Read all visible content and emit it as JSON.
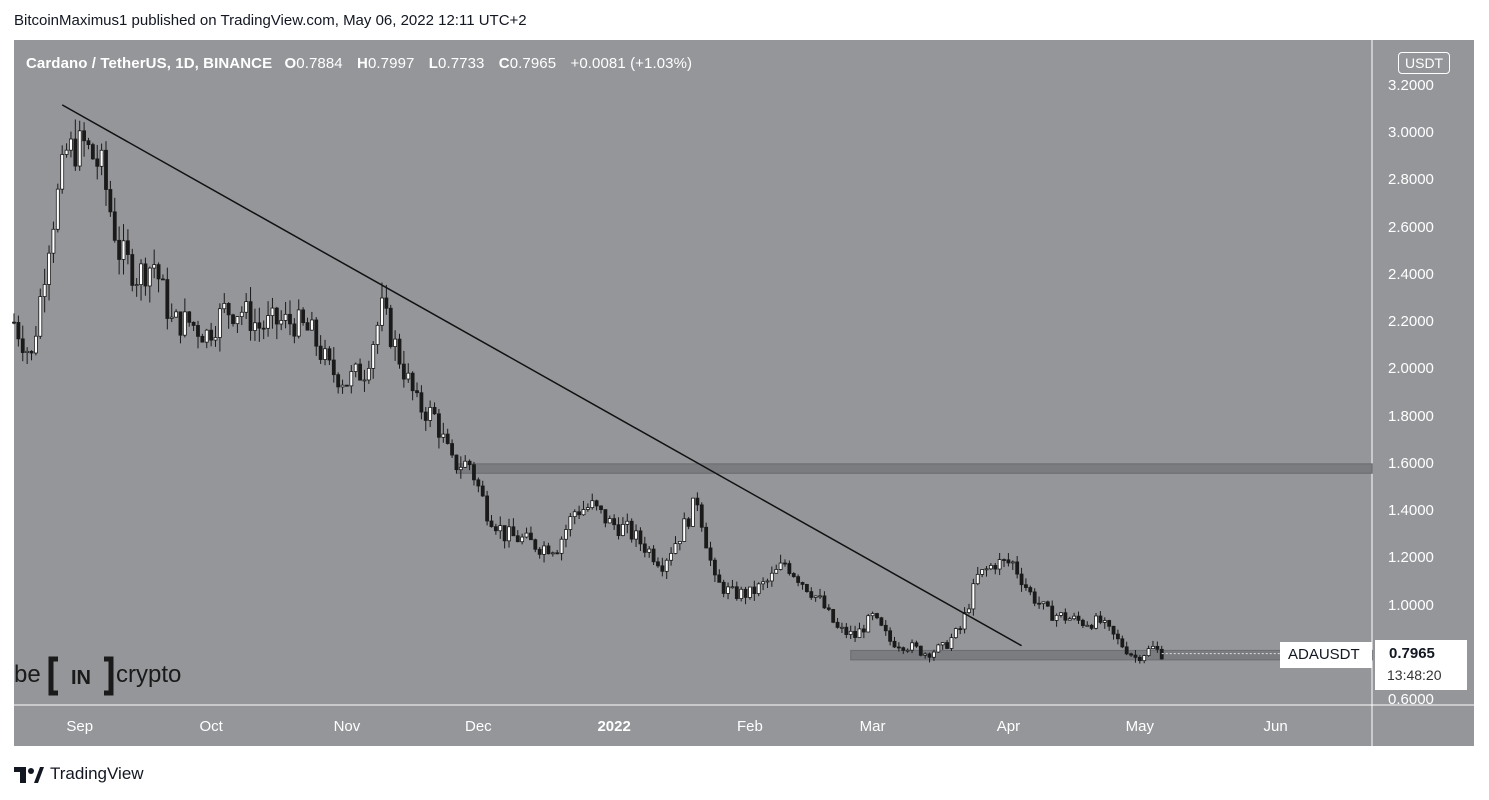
{
  "header": {
    "published_line": "BitcoinMaximus1 published on TradingView.com, May 06, 2022 12:11 UTC+2"
  },
  "legend": {
    "symbol": "Cardano / TetherUS, 1D, BINANCE",
    "o_key": "O",
    "o_val": "0.7884",
    "h_key": "H",
    "h_val": "0.7997",
    "l_key": "L",
    "l_val": "0.7733",
    "c_key": "C",
    "c_val": "0.7965",
    "change": "+0.0081 (+1.03%)"
  },
  "currency_tag": "USDT",
  "price_label": {
    "ticker": "ADAUSDT",
    "price": "0.7965",
    "countdown": "13:48:20"
  },
  "logo": {
    "left": "be",
    "middle": "IN",
    "right": "crypto"
  },
  "footer": {
    "brand": "TradingView"
  },
  "colors": {
    "background": "#949699",
    "candle": "#1a1a1a",
    "zone": "#7a7c80",
    "text": "#ffffff"
  },
  "chart_data": {
    "type": "candlestick",
    "title": "Cardano / TetherUS, 1D, BINANCE",
    "ylim": [
      0.6,
      3.3
    ],
    "y_ticks": [
      "3.2000",
      "3.0000",
      "2.8000",
      "2.6000",
      "2.4000",
      "2.2000",
      "2.0000",
      "1.8000",
      "1.6000",
      "1.4000",
      "1.2000",
      "1.0000",
      "0.6000"
    ],
    "x_ticks": [
      {
        "label": "Sep",
        "date": "2021-09-01"
      },
      {
        "label": "Oct",
        "date": "2021-10-01"
      },
      {
        "label": "Nov",
        "date": "2021-11-01"
      },
      {
        "label": "Dec",
        "date": "2021-12-01"
      },
      {
        "label": "2022",
        "date": "2022-01-01"
      },
      {
        "label": "Feb",
        "date": "2022-02-01"
      },
      {
        "label": "Mar",
        "date": "2022-03-01"
      },
      {
        "label": "Apr",
        "date": "2022-04-01"
      },
      {
        "label": "May",
        "date": "2022-05-01"
      },
      {
        "label": "Jun",
        "date": "2022-06-01"
      }
    ],
    "xlim": [
      "2021-08-17",
      "2022-06-23"
    ],
    "trendline": [
      {
        "date": "2021-08-28",
        "price": 3.12
      },
      {
        "date": "2022-04-04",
        "price": 0.83
      }
    ],
    "zones": [
      {
        "from": "2021-11-26",
        "price_low": 1.56,
        "price_high": 1.6
      },
      {
        "from": "2022-02-24",
        "price_low": 0.77,
        "price_high": 0.81
      }
    ],
    "closes": [
      {
        "date": "2021-08-17",
        "price": 2.2
      },
      {
        "date": "2021-08-21",
        "price": 2.05
      },
      {
        "date": "2021-08-25",
        "price": 2.55
      },
      {
        "date": "2021-08-29",
        "price": 2.92
      },
      {
        "date": "2021-09-02",
        "price": 2.95
      },
      {
        "date": "2021-09-06",
        "price": 2.85
      },
      {
        "date": "2021-09-10",
        "price": 2.5
      },
      {
        "date": "2021-09-14",
        "price": 2.4
      },
      {
        "date": "2021-09-18",
        "price": 2.45
      },
      {
        "date": "2021-09-22",
        "price": 2.2
      },
      {
        "date": "2021-09-26",
        "price": 2.2
      },
      {
        "date": "2021-09-30",
        "price": 2.15
      },
      {
        "date": "2021-10-04",
        "price": 2.25
      },
      {
        "date": "2021-10-08",
        "price": 2.25
      },
      {
        "date": "2021-10-12",
        "price": 2.18
      },
      {
        "date": "2021-10-16",
        "price": 2.2
      },
      {
        "date": "2021-10-20",
        "price": 2.2
      },
      {
        "date": "2021-10-24",
        "price": 2.15
      },
      {
        "date": "2021-10-28",
        "price": 2.0
      },
      {
        "date": "2021-11-01",
        "price": 1.95
      },
      {
        "date": "2021-11-05",
        "price": 2.0
      },
      {
        "date": "2021-11-09",
        "price": 2.25
      },
      {
        "date": "2021-11-13",
        "price": 2.05
      },
      {
        "date": "2021-11-17",
        "price": 1.85
      },
      {
        "date": "2021-11-21",
        "price": 1.8
      },
      {
        "date": "2021-11-25",
        "price": 1.6
      },
      {
        "date": "2021-11-29",
        "price": 1.6
      },
      {
        "date": "2021-12-03",
        "price": 1.4
      },
      {
        "date": "2021-12-07",
        "price": 1.3
      },
      {
        "date": "2021-12-11",
        "price": 1.28
      },
      {
        "date": "2021-12-15",
        "price": 1.25
      },
      {
        "date": "2021-12-19",
        "price": 1.25
      },
      {
        "date": "2021-12-23",
        "price": 1.4
      },
      {
        "date": "2021-12-27",
        "price": 1.42
      },
      {
        "date": "2021-12-31",
        "price": 1.35
      },
      {
        "date": "2022-01-04",
        "price": 1.32
      },
      {
        "date": "2022-01-08",
        "price": 1.25
      },
      {
        "date": "2022-01-12",
        "price": 1.18
      },
      {
        "date": "2022-01-16",
        "price": 1.3
      },
      {
        "date": "2022-01-20",
        "price": 1.45
      },
      {
        "date": "2022-01-24",
        "price": 1.1
      },
      {
        "date": "2022-01-28",
        "price": 1.05
      },
      {
        "date": "2022-02-01",
        "price": 1.05
      },
      {
        "date": "2022-02-05",
        "price": 1.1
      },
      {
        "date": "2022-02-09",
        "price": 1.18
      },
      {
        "date": "2022-02-13",
        "price": 1.1
      },
      {
        "date": "2022-02-17",
        "price": 1.02
      },
      {
        "date": "2022-02-21",
        "price": 0.9
      },
      {
        "date": "2022-02-25",
        "price": 0.87
      },
      {
        "date": "2022-03-01",
        "price": 0.95
      },
      {
        "date": "2022-03-05",
        "price": 0.85
      },
      {
        "date": "2022-03-09",
        "price": 0.83
      },
      {
        "date": "2022-03-13",
        "price": 0.8
      },
      {
        "date": "2022-03-17",
        "price": 0.82
      },
      {
        "date": "2022-03-21",
        "price": 0.9
      },
      {
        "date": "2022-03-25",
        "price": 1.12
      },
      {
        "date": "2022-03-29",
        "price": 1.18
      },
      {
        "date": "2022-04-02",
        "price": 1.18
      },
      {
        "date": "2022-04-06",
        "price": 1.05
      },
      {
        "date": "2022-04-10",
        "price": 0.97
      },
      {
        "date": "2022-04-14",
        "price": 0.95
      },
      {
        "date": "2022-04-18",
        "price": 0.93
      },
      {
        "date": "2022-04-22",
        "price": 0.93
      },
      {
        "date": "2022-04-26",
        "price": 0.85
      },
      {
        "date": "2022-04-30",
        "price": 0.78
      },
      {
        "date": "2022-05-04",
        "price": 0.82
      },
      {
        "date": "2022-05-06",
        "price": 0.7965
      }
    ]
  }
}
